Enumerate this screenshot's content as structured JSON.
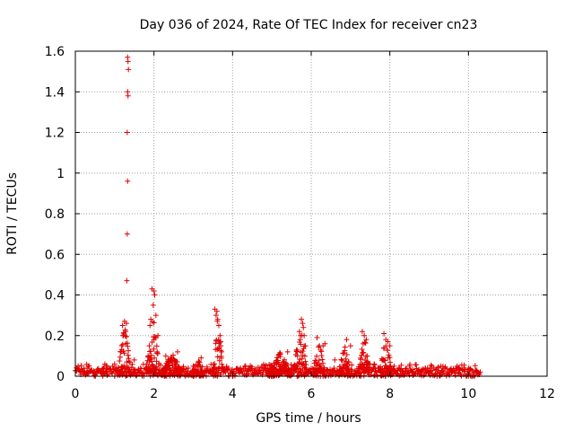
{
  "chart_data": {
    "type": "scatter",
    "title": "Day 036 of 2024, Rate Of TEC Index for receiver cn23",
    "xlabel": "GPS time / hours",
    "ylabel": "ROTI / TECUs",
    "xlim": [
      0,
      12
    ],
    "ylim": [
      0,
      1.6
    ],
    "xticks": [
      "0",
      "2",
      "4",
      "6",
      "8",
      "10",
      "12"
    ],
    "yticks": [
      "0",
      "0.2",
      "0.4",
      "0.6",
      "0.8",
      "1",
      "1.2",
      "1.4",
      "1.6"
    ],
    "grid": true,
    "marker": "+",
    "color": "#e00000",
    "series": [
      {
        "x": [
          1.33,
          1.34,
          1.35,
          1.33,
          1.34,
          1.32,
          1.33,
          1.32,
          1.31,
          1.2,
          1.25,
          1.3,
          1.22,
          1.28,
          1.18,
          1.15,
          1.95,
          2.0,
          2.02,
          1.98,
          2.05,
          1.92,
          2.1,
          1.9,
          2.0,
          1.88,
          2.08,
          1.85,
          3.55,
          3.6,
          3.62,
          3.65,
          3.58,
          3.68,
          3.7,
          3.72,
          5.75,
          5.78,
          5.8,
          5.82,
          5.7,
          5.85,
          5.72,
          5.65,
          6.15,
          6.3,
          6.35,
          6.9,
          7.0,
          7.3,
          7.35,
          7.4,
          7.85,
          7.9,
          7.95,
          8.0,
          0.1,
          0.3,
          0.5,
          0.8,
          1.0,
          1.5,
          2.3,
          2.6,
          3.0,
          3.2,
          4.2,
          4.5,
          4.8,
          5.1,
          5.4,
          6.6,
          7.6,
          8.5,
          8.9,
          9.3,
          9.7,
          10.0,
          10.2
        ],
        "y": [
          1.57,
          1.55,
          1.51,
          1.4,
          1.38,
          1.2,
          0.96,
          0.7,
          0.47,
          0.25,
          0.27,
          0.26,
          0.2,
          0.22,
          0.15,
          0.12,
          0.43,
          0.42,
          0.4,
          0.35,
          0.3,
          0.28,
          0.2,
          0.25,
          0.18,
          0.15,
          0.12,
          0.1,
          0.33,
          0.32,
          0.28,
          0.25,
          0.3,
          0.2,
          0.15,
          0.12,
          0.28,
          0.26,
          0.24,
          0.2,
          0.22,
          0.15,
          0.18,
          0.1,
          0.19,
          0.15,
          0.16,
          0.18,
          0.15,
          0.22,
          0.2,
          0.18,
          0.21,
          0.18,
          0.17,
          0.15,
          0.03,
          0.04,
          0.02,
          0.05,
          0.06,
          0.08,
          0.1,
          0.12,
          0.05,
          0.09,
          0.04,
          0.03,
          0.05,
          0.07,
          0.12,
          0.08,
          0.06,
          0.05,
          0.04,
          0.05,
          0.03,
          0.04,
          0.03
        ]
      }
    ],
    "baseline_noise": {
      "x_start": 0,
      "x_end": 10.3,
      "y_max": 0.06
    }
  }
}
